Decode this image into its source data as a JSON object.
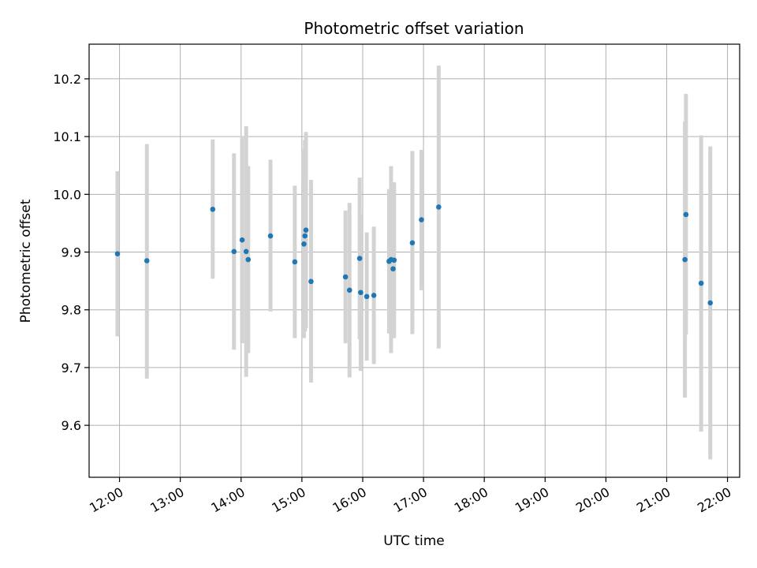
{
  "chart_data": {
    "type": "scatter",
    "title": "Photometric offset variation",
    "xlabel": "UTC time",
    "ylabel": "Photometric offset",
    "x_unit": "hours UTC",
    "xlim": [
      11.5,
      22.2
    ],
    "ylim": [
      9.51,
      10.26
    ],
    "x_ticks": [
      12,
      13,
      14,
      15,
      16,
      17,
      18,
      19,
      20,
      21,
      22
    ],
    "x_tick_labels": [
      "12:00",
      "13:00",
      "14:00",
      "15:00",
      "16:00",
      "17:00",
      "18:00",
      "19:00",
      "20:00",
      "21:00",
      "22:00"
    ],
    "y_ticks": [
      9.6,
      9.7,
      9.8,
      9.9,
      10.0,
      10.1,
      10.2
    ],
    "y_tick_labels": [
      "9.6",
      "9.7",
      "9.8",
      "9.9",
      "10.0",
      "10.1",
      "10.2"
    ],
    "grid": true,
    "marker_color": "#1f77b4",
    "errorbar_color": "#d3d3d3",
    "points": [
      {
        "time": "11:58",
        "y": 9.897,
        "low": 9.754,
        "high": 10.04
      },
      {
        "time": "12:27",
        "y": 9.885,
        "low": 9.681,
        "high": 10.087
      },
      {
        "time": "13:32",
        "y": 9.974,
        "low": 9.854,
        "high": 10.095
      },
      {
        "time": "13:53",
        "y": 9.901,
        "low": 9.731,
        "high": 10.071
      },
      {
        "time": "14:01",
        "y": 9.921,
        "low": 9.742,
        "high": 10.101
      },
      {
        "time": "14:05",
        "y": 9.901,
        "low": 9.684,
        "high": 10.118
      },
      {
        "time": "14:07",
        "y": 9.887,
        "low": 9.725,
        "high": 10.049
      },
      {
        "time": "14:29",
        "y": 9.928,
        "low": 9.797,
        "high": 10.06
      },
      {
        "time": "14:53",
        "y": 9.883,
        "low": 9.751,
        "high": 10.015
      },
      {
        "time": "15:02",
        "y": 9.914,
        "low": 9.751,
        "high": 10.078
      },
      {
        "time": "15:03",
        "y": 9.928,
        "low": 9.762,
        "high": 10.094
      },
      {
        "time": "15:04",
        "y": 9.938,
        "low": 9.768,
        "high": 10.108
      },
      {
        "time": "15:09",
        "y": 9.849,
        "low": 9.674,
        "high": 10.025
      },
      {
        "time": "15:43",
        "y": 9.857,
        "low": 9.742,
        "high": 9.972
      },
      {
        "time": "15:47",
        "y": 9.834,
        "low": 9.683,
        "high": 9.985
      },
      {
        "time": "15:57",
        "y": 9.889,
        "low": 9.749,
        "high": 10.029
      },
      {
        "time": "15:58",
        "y": 9.83,
        "low": 9.694,
        "high": 9.966
      },
      {
        "time": "16:04",
        "y": 9.823,
        "low": 9.712,
        "high": 9.934
      },
      {
        "time": "16:11",
        "y": 9.825,
        "low": 9.706,
        "high": 9.944
      },
      {
        "time": "16:26",
        "y": 9.884,
        "low": 9.759,
        "high": 10.009
      },
      {
        "time": "16:28",
        "y": 9.887,
        "low": 9.725,
        "high": 10.049
      },
      {
        "time": "16:30",
        "y": 9.871,
        "low": 9.768,
        "high": 9.974
      },
      {
        "time": "16:31",
        "y": 9.886,
        "low": 9.751,
        "high": 10.021
      },
      {
        "time": "16:49",
        "y": 9.916,
        "low": 9.758,
        "high": 10.075
      },
      {
        "time": "16:58",
        "y": 9.956,
        "low": 9.834,
        "high": 10.077
      },
      {
        "time": "17:15",
        "y": 9.978,
        "low": 9.733,
        "high": 10.223
      },
      {
        "time": "21:18",
        "y": 9.887,
        "low": 9.648,
        "high": 10.126
      },
      {
        "time": "21:19",
        "y": 9.965,
        "low": 9.757,
        "high": 10.174
      },
      {
        "time": "21:34",
        "y": 9.846,
        "low": 9.589,
        "high": 10.102
      },
      {
        "time": "21:43",
        "y": 9.812,
        "low": 9.541,
        "high": 10.083
      }
    ]
  }
}
